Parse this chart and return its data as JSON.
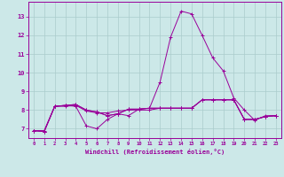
{
  "xlabel": "Windchill (Refroidissement éolien,°C)",
  "background_color": "#cce8e8",
  "grid_color": "#aacccc",
  "line_color": "#990099",
  "xlim": [
    -0.5,
    23.5
  ],
  "ylim": [
    6.5,
    13.8
  ],
  "xticks": [
    0,
    1,
    2,
    3,
    4,
    5,
    6,
    7,
    8,
    9,
    10,
    11,
    12,
    13,
    14,
    15,
    16,
    17,
    18,
    19,
    20,
    21,
    22,
    23
  ],
  "yticks": [
    7,
    8,
    9,
    10,
    11,
    12,
    13
  ],
  "series": [
    [
      6.9,
      6.85,
      8.2,
      8.25,
      8.2,
      7.15,
      7.0,
      7.5,
      7.8,
      7.7,
      8.05,
      8.1,
      8.1,
      8.1,
      8.1,
      8.1,
      8.55,
      8.55,
      8.55,
      8.55,
      7.5,
      7.5,
      7.65,
      7.7
    ],
    [
      6.9,
      6.85,
      8.2,
      8.25,
      8.3,
      8.0,
      7.9,
      7.7,
      7.8,
      8.05,
      8.05,
      8.1,
      9.5,
      11.9,
      13.3,
      13.15,
      12.0,
      10.8,
      10.1,
      8.65,
      8.0,
      7.45,
      7.7,
      7.7
    ],
    [
      6.9,
      6.85,
      8.2,
      8.25,
      8.3,
      8.0,
      7.9,
      7.7,
      7.8,
      8.05,
      8.05,
      8.1,
      8.1,
      8.1,
      8.1,
      8.1,
      8.55,
      8.55,
      8.55,
      8.55,
      7.5,
      7.5,
      7.65,
      7.7
    ],
    [
      6.9,
      6.9,
      8.2,
      8.2,
      8.25,
      7.95,
      7.85,
      7.85,
      7.95,
      8.0,
      8.0,
      8.0,
      8.1,
      8.1,
      8.1,
      8.1,
      8.55,
      8.55,
      8.55,
      8.55,
      7.5,
      7.5,
      7.65,
      7.7
    ]
  ]
}
